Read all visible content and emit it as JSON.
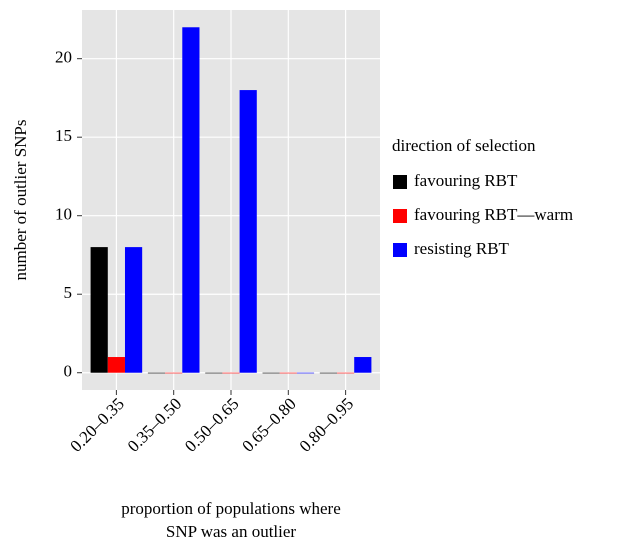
{
  "chart_data": {
    "type": "bar",
    "x_label": [
      "proportion of populations where",
      "SNP was an outlier"
    ],
    "y_label": "number of outlier SNPs",
    "legend_title": "direction of selection",
    "legend_position": "right",
    "grid": true,
    "categories": [
      "0.20–0.35",
      "0.35–0.50",
      "0.50–0.65",
      "0.65–0.80",
      "0.80–0.95"
    ],
    "series": [
      {
        "name": "favouring RBT",
        "color": "#000000",
        "values": [
          8,
          0,
          0,
          0,
          0
        ]
      },
      {
        "name": "favouring RBT—warm",
        "color": "#ff0000",
        "values": [
          1,
          0,
          0,
          0,
          0
        ]
      },
      {
        "name": "resisting RBT",
        "color": "#0000ff",
        "values": [
          8,
          22,
          18,
          0,
          1
        ]
      }
    ],
    "ylim": [
      -1.1,
      23.1
    ],
    "yticks": [
      0,
      5,
      10,
      15,
      20
    ]
  }
}
